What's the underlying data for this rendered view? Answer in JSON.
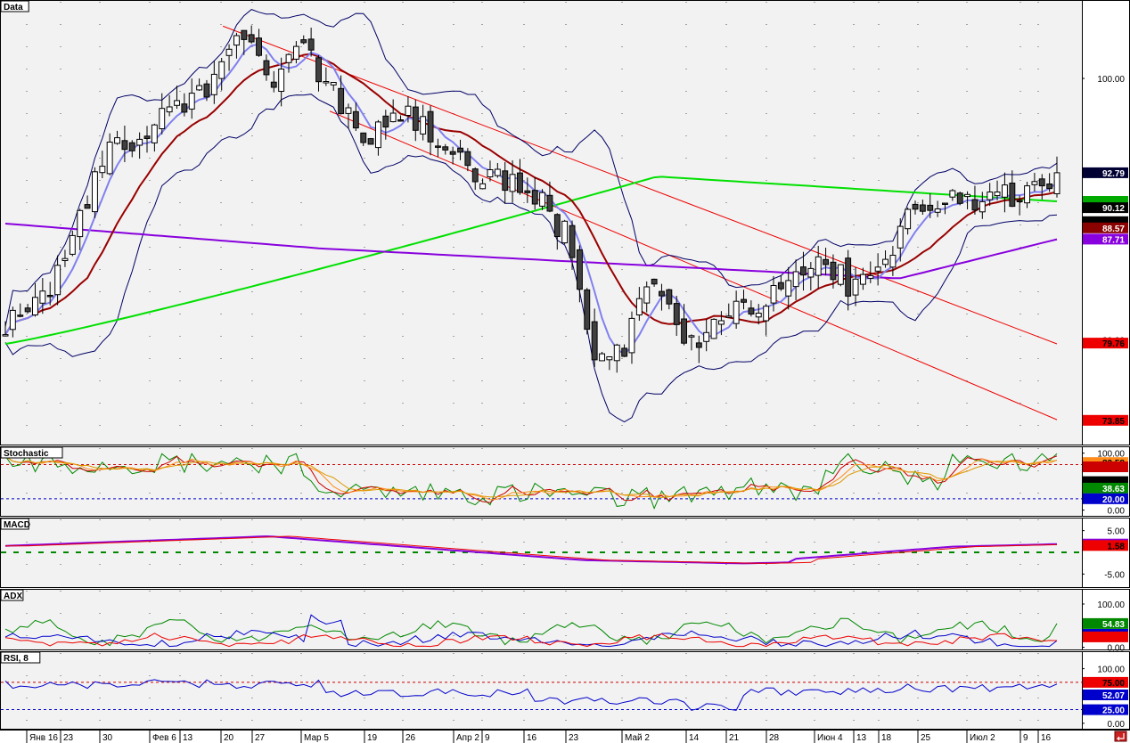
{
  "chart_data": {
    "type": "candlestick",
    "x_labels": [
      "Янв 16",
      "23",
      "30",
      "Фев 6",
      "13",
      "20",
      "27",
      "Мар 5",
      "19",
      "26",
      "Апр 2",
      "9",
      "16",
      "23",
      "Май 2",
      "14",
      "21",
      "28",
      "Июн 4",
      "13",
      "18",
      "25",
      "Июл 2",
      "9",
      "16"
    ],
    "panes": [
      {
        "id": "price",
        "title": "Data",
        "ticks": [
          "100.00",
          "90.00",
          "80.00"
        ],
        "series": [
          {
            "name": "ohlc",
            "start": 80.5,
            "end": 92.79,
            "color": "#000000"
          },
          {
            "name": "ma-fast",
            "color": "#7f7ff5"
          },
          {
            "name": "ma-red",
            "color": "#990000"
          },
          {
            "name": "ma-green",
            "color": "#00e000"
          },
          {
            "name": "ma-purple",
            "color": "#8800dd"
          },
          {
            "name": "bollinger",
            "color": "#000066"
          },
          {
            "name": "channel",
            "color": "#dd0000"
          }
        ],
        "tags": [
          {
            "value": "92.79",
            "bg": "#000033",
            "fg": "#ffffff",
            "y": 92.79
          },
          {
            "value": "",
            "bg": "#00aa00",
            "fg": "#ffffff",
            "y": 90.6
          },
          {
            "value": "90.12",
            "bg": "#000000",
            "fg": "#ffffff",
            "y": 90.12
          },
          {
            "value": "",
            "bg": "#000000",
            "fg": "#ffffff",
            "y": 89.05
          },
          {
            "value": "88.57",
            "bg": "#8b0000",
            "fg": "#ffffff",
            "y": 88.57
          },
          {
            "value": "87.71",
            "bg": "#8800dd",
            "fg": "#ffffff",
            "y": 87.71
          },
          {
            "value": "79.76",
            "bg": "#ee0000",
            "fg": "#000000",
            "y": 79.76
          },
          {
            "value": "73.85",
            "bg": "#ee0000",
            "fg": "#000000",
            "y": 73.85
          }
        ]
      },
      {
        "id": "stoch",
        "title": "Stochastic",
        "ticks": [
          "100.00",
          "50.00",
          "0.00"
        ],
        "levels": [
          {
            "v": 80,
            "color": "#cc0000"
          },
          {
            "v": 20,
            "color": "#0000cc"
          }
        ],
        "tags": [
          {
            "value": "83.58",
            "bg": "#ff8c1a",
            "fg": "#000000",
            "y": 83.58
          },
          {
            "value": "",
            "bg": "#cc0000",
            "fg": "#ffffff",
            "y": 76
          },
          {
            "value": "",
            "bg": "#000000",
            "fg": "#ffffff",
            "y": 50
          },
          {
            "value": "38.63",
            "bg": "#008800",
            "fg": "#ffffff",
            "y": 38.63
          },
          {
            "value": "20.00",
            "bg": "#0000cc",
            "fg": "#ffffff",
            "y": 20
          }
        ]
      },
      {
        "id": "macd",
        "title": "MACD",
        "ticks": [
          "5.00",
          "-5.00"
        ],
        "tags": [
          {
            "value": "",
            "bg": "#8800dd",
            "fg": "#ffffff",
            "y": 1.9
          },
          {
            "value": "1.58",
            "bg": "#ee0000",
            "fg": "#000000",
            "y": 1.58
          }
        ]
      },
      {
        "id": "adx",
        "title": "ADX",
        "ticks": [
          "100.00",
          "0.00"
        ],
        "tags": [
          {
            "value": "54.83",
            "bg": "#008800",
            "fg": "#ffffff",
            "y": 54.83
          },
          {
            "value": "",
            "bg": "#0000cc",
            "fg": "#ffffff",
            "y": 30
          },
          {
            "value": "",
            "bg": "#ee0000",
            "fg": "#000000",
            "y": 24
          }
        ]
      },
      {
        "id": "rsi",
        "title": "RSI, 8",
        "ticks": [
          "100.00",
          "0.00"
        ],
        "levels": [
          {
            "v": 75,
            "color": "#cc0000"
          },
          {
            "v": 25,
            "color": "#0000cc"
          }
        ],
        "tags": [
          {
            "value": "75.00",
            "bg": "#ee0000",
            "fg": "#000000",
            "y": 75
          },
          {
            "value": "52.07",
            "bg": "#0000cc",
            "fg": "#ffffff",
            "y": 52.07
          },
          {
            "value": "25.00",
            "bg": "#0000cc",
            "fg": "#ffffff",
            "y": 25
          }
        ]
      }
    ]
  }
}
